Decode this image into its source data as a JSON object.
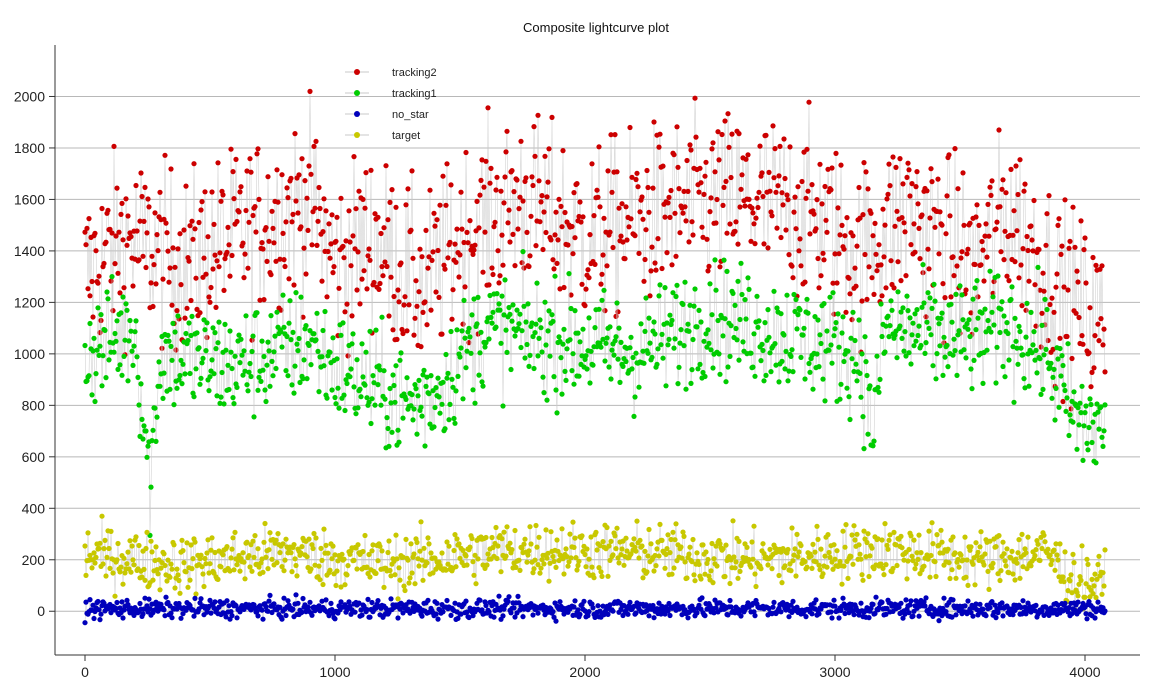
{
  "chart_data": {
    "type": "scatter",
    "title": "Composite lightcurve plot",
    "xlabel": "",
    "ylabel": "",
    "xlim": [
      -120,
      4220
    ],
    "ylim": [
      -170,
      2200
    ],
    "x_ticks": [
      0,
      1000,
      2000,
      3000,
      4000
    ],
    "y_ticks": [
      0,
      200,
      400,
      600,
      800,
      1000,
      1200,
      1400,
      1600,
      1800,
      2000
    ],
    "grid": "horizontal",
    "legend_position": "top-left",
    "n_points": 4080,
    "series": [
      {
        "name": "tracking2",
        "color": "#cc0000",
        "mean": 1500,
        "spread": 170,
        "segments": [
          [
            0,
            1300
          ],
          [
            150,
            1450
          ],
          [
            400,
            1350
          ],
          [
            700,
            1500
          ],
          [
            900,
            1600
          ],
          [
            1000,
            1350
          ],
          [
            1150,
            1450
          ],
          [
            1350,
            1250
          ],
          [
            1500,
            1450
          ],
          [
            1750,
            1600
          ],
          [
            2000,
            1450
          ],
          [
            2300,
            1550
          ],
          [
            2600,
            1600
          ],
          [
            2900,
            1550
          ],
          [
            3100,
            1400
          ],
          [
            3300,
            1550
          ],
          [
            3550,
            1350
          ],
          [
            3700,
            1550
          ],
          [
            3900,
            1250
          ],
          [
            4080,
            1100
          ]
        ],
        "max": 2090
      },
      {
        "name": "tracking1",
        "color": "#00cc00",
        "mean": 1000,
        "spread": 110,
        "segments": [
          [
            0,
            1000
          ],
          [
            200,
            1100
          ],
          [
            260,
            500
          ],
          [
            300,
            1000
          ],
          [
            600,
            950
          ],
          [
            900,
            1050
          ],
          [
            1000,
            950
          ],
          [
            1300,
            800
          ],
          [
            1400,
            850
          ],
          [
            1600,
            1100
          ],
          [
            1900,
            1050
          ],
          [
            2200,
            1000
          ],
          [
            2500,
            1150
          ],
          [
            2900,
            1050
          ],
          [
            3100,
            1000
          ],
          [
            3150,
            700
          ],
          [
            3200,
            1100
          ],
          [
            3500,
            1050
          ],
          [
            3700,
            1100
          ],
          [
            3850,
            1000
          ],
          [
            3950,
            750
          ],
          [
            4080,
            700
          ]
        ],
        "max": 1600
      },
      {
        "name": "no_star",
        "color": "#0000bb",
        "mean": 10,
        "spread": 18,
        "segments": [
          [
            0,
            10
          ],
          [
            4080,
            10
          ]
        ],
        "max": 90
      },
      {
        "name": "target",
        "color": "#c8c800",
        "mean": 210,
        "spread": 55,
        "segments": [
          [
            0,
            220
          ],
          [
            400,
            180
          ],
          [
            800,
            230
          ],
          [
            1200,
            180
          ],
          [
            1700,
            240
          ],
          [
            2200,
            230
          ],
          [
            2700,
            200
          ],
          [
            3200,
            240
          ],
          [
            3600,
            200
          ],
          [
            3850,
            230
          ],
          [
            3950,
            120
          ],
          [
            4080,
            110
          ]
        ],
        "max": 500
      }
    ]
  },
  "legend": [
    {
      "label": "tracking2",
      "color": "#cc0000"
    },
    {
      "label": "tracking1",
      "color": "#00cc00"
    },
    {
      "label": "no_star",
      "color": "#0000bb"
    },
    {
      "label": "target",
      "color": "#c8c800"
    }
  ]
}
